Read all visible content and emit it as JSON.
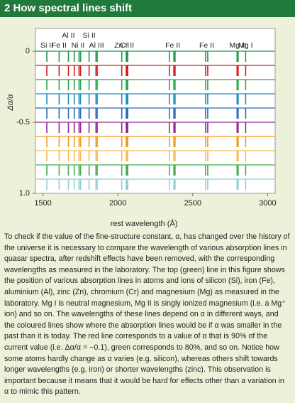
{
  "header": {
    "title": "2 How spectral lines shift"
  },
  "chart_data": {
    "type": "spectral-lines",
    "x_label": "rest wavelength (Å)",
    "y_label": "Δα/α",
    "xlim": [
      1450,
      3050
    ],
    "xticks": [
      1500,
      2000,
      2500,
      3000
    ],
    "ylim": [
      -1.0,
      0.16
    ],
    "yticks": [
      0,
      -0.5,
      {
        "value": -1.0,
        "label": "1.0"
      }
    ],
    "lines": [
      {
        "label": "Si II",
        "wavelengths": [
          1526
        ]
      },
      {
        "label": "Fe II",
        "wavelengths": [
          1608
        ]
      },
      {
        "label": "Al II",
        "wavelengths": [
          1670
        ]
      },
      {
        "label": "Ni II",
        "wavelengths": [
          1709,
          1741,
          1751
        ]
      },
      {
        "label": "Si II",
        "wavelengths": [
          1808
        ]
      },
      {
        "label": "Al III",
        "wavelengths": [
          1854,
          1862
        ]
      },
      {
        "label": "Zn II",
        "wavelengths": [
          2026
        ]
      },
      {
        "label": "Cr II",
        "wavelengths": [
          2056,
          2062,
          2066
        ]
      },
      {
        "label": "Fe II",
        "wavelengths": [
          2344,
          2374,
          2382
        ]
      },
      {
        "label": "Fe II",
        "wavelengths": [
          2586,
          2600
        ]
      },
      {
        "label": "Mg II",
        "wavelengths": [
          2796,
          2803
        ]
      },
      {
        "label": "Mg I",
        "wavelengths": [
          2853
        ]
      }
    ],
    "series": [
      {
        "color": "#1e9a48",
        "value": 0
      },
      {
        "color": "#d7191c",
        "value": -0.1
      },
      {
        "color": "#2aa84a",
        "value": -0.2
      },
      {
        "color": "#1a8fc0",
        "value": -0.3
      },
      {
        "color": "#2a6ab8",
        "value": -0.4
      },
      {
        "color": "#8e2a8e",
        "value": -0.5
      },
      {
        "color": "#f09a18",
        "value": -0.6
      },
      {
        "color": "#f5bc50",
        "value": -0.7
      },
      {
        "color": "#4aab4a",
        "value": -0.8
      },
      {
        "color": "#8fcfd8",
        "value": -0.9
      }
    ]
  },
  "caption": "To check if the value of the fine-structure constant, α, has changed over the history of the universe it is necessary to compare the wavelength of various absorption lines in quasar spectra, after redshift effects have been removed, with the corresponding wavelengths as measured in the laboratory. The top (green) line in this figure shows the position of various absorption lines in atoms and ions of silicon (Si), iron (Fe), aluminium (Al), zinc (Zn), chromium (Cr) and magnesium (Mg) as measured in the laboratory. Mg I is neutral magnesium, Mg II is singly ionized magnesium (i.e. a Mg⁺ ion) and so on. The wavelengths of these lines depend on α in different ways, and the coloured lines show where the absorption lines would be if α was smaller in the past than it is today. The red line corresponds to a value of α that is 90% of the current value (i.e. Δα/α = −0.1), green corresponds to 80%, and so on. Notice how some atoms hardly change as α varies (e.g. silicon), whereas others shift towards longer wavelengths (e.g. iron) or shorter wavelengths (zinc). This observation is important because it means that it would be hard for effects other than a variation in α to mimic this pattern."
}
